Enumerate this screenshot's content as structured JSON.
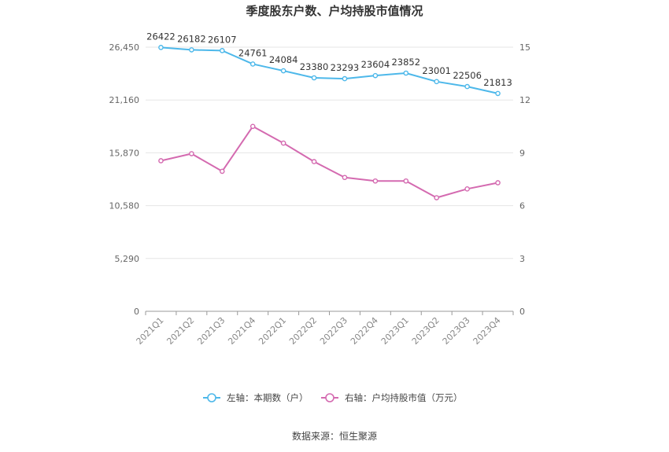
{
  "chart_data": {
    "type": "line",
    "title": "季度股东户数、户均持股市值情况",
    "categories": [
      "2021Q1",
      "2021Q2",
      "2021Q3",
      "2021Q4",
      "2022Q1",
      "2022Q2",
      "2022Q3",
      "2022Q4",
      "2023Q1",
      "2023Q2",
      "2023Q3",
      "2023Q4"
    ],
    "left_axis": {
      "ticks": [
        0,
        5290,
        10580,
        15870,
        21160,
        26450
      ],
      "tick_labels": [
        "0",
        "5,290",
        "10,580",
        "15,870",
        "21,160",
        "26,450"
      ],
      "range": [
        0,
        26450
      ]
    },
    "right_axis": {
      "ticks": [
        0,
        3,
        6,
        9,
        12,
        15
      ],
      "tick_labels": [
        "0",
        "3",
        "6",
        "9",
        "12",
        "15"
      ],
      "range": [
        0,
        15
      ]
    },
    "series": [
      {
        "name": "左轴：本期数（户）",
        "axis": "left",
        "color": "#4db8ea",
        "values": [
          26422,
          26182,
          26107,
          24761,
          24084,
          23380,
          23293,
          23604,
          23852,
          23001,
          22506,
          21813
        ],
        "labels": [
          "26422",
          "26182",
          "26107",
          "24761",
          "24084",
          "23380",
          "23293",
          "23604",
          "23852",
          "23001",
          "22506",
          "21813"
        ]
      },
      {
        "name": "右轴：户均持股市值（万元）",
        "axis": "right",
        "color": "#d46ab0",
        "values": [
          8.55,
          8.95,
          7.95,
          10.5,
          9.55,
          8.5,
          7.6,
          7.4,
          7.4,
          6.45,
          6.95,
          7.3
        ]
      }
    ],
    "grid": true,
    "legend_position": "bottom"
  },
  "source": "数据来源：恒生聚源"
}
